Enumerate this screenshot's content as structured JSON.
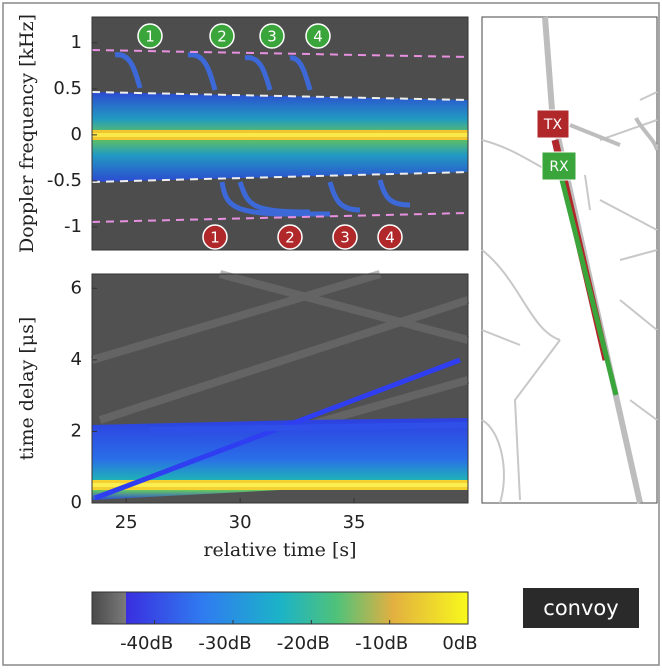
{
  "chart_data": [
    {
      "type": "heatmap",
      "ylabel": "Doppler frequency [kHz]",
      "ylim": [
        -1.25,
        1.28
      ],
      "yticks": [
        1,
        0.5,
        0,
        -0.5,
        -1
      ],
      "xlim": [
        23.5,
        40
      ],
      "markers": [
        {
          "color": "#3aa53a",
          "labels": [
            "1",
            "2",
            "3",
            "4"
          ]
        },
        {
          "color": "#b0282a",
          "labels": [
            "1",
            "2",
            "3",
            "4"
          ]
        }
      ]
    },
    {
      "type": "heatmap",
      "ylabel": "time delay [μs]",
      "xlabel": "relative time [s]",
      "ylim": [
        0,
        6.4
      ],
      "yticks": [
        0,
        2,
        4,
        6
      ],
      "xlim": [
        23.5,
        40
      ],
      "xticks": [
        25,
        30,
        35
      ]
    },
    {
      "type": "colorbar",
      "clim": [
        -48,
        0
      ],
      "ticks": [
        {
          "value": -40,
          "label": "-40dB"
        },
        {
          "value": -30,
          "label": "-30dB"
        },
        {
          "value": -20,
          "label": "-20dB"
        },
        {
          "value": -10,
          "label": "-10dB"
        },
        {
          "value": 0,
          "label": "0dB"
        }
      ]
    }
  ],
  "map": {
    "labels": [
      "TX",
      "RX"
    ],
    "scenario": "convoy"
  }
}
